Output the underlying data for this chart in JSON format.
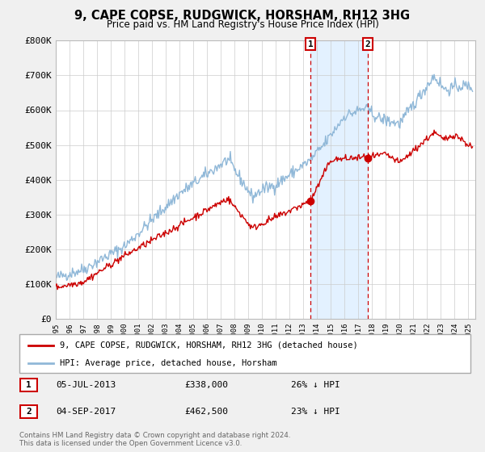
{
  "title": "9, CAPE COPSE, RUDGWICK, HORSHAM, RH12 3HG",
  "subtitle": "Price paid vs. HM Land Registry's House Price Index (HPI)",
  "ylim": [
    0,
    800000
  ],
  "xlim_start": 1995.0,
  "xlim_end": 2025.5,
  "background_color": "#f0f0f0",
  "plot_bg_color": "#ffffff",
  "grid_color": "#cccccc",
  "hpi_color": "#90b8d8",
  "price_color": "#cc0000",
  "shade_color": "#ddeeff",
  "marker1_date": 2013.51,
  "marker1_price": 338000,
  "marker1_label": "05-JUL-2013",
  "marker1_value": "£338,000",
  "marker1_pct": "26% ↓ HPI",
  "marker2_date": 2017.67,
  "marker2_price": 462500,
  "marker2_label": "04-SEP-2017",
  "marker2_value": "£462,500",
  "marker2_pct": "23% ↓ HPI",
  "legend_label_price": "9, CAPE COPSE, RUDGWICK, HORSHAM, RH12 3HG (detached house)",
  "legend_label_hpi": "HPI: Average price, detached house, Horsham",
  "footer1": "Contains HM Land Registry data © Crown copyright and database right 2024.",
  "footer2": "This data is licensed under the Open Government Licence v3.0."
}
